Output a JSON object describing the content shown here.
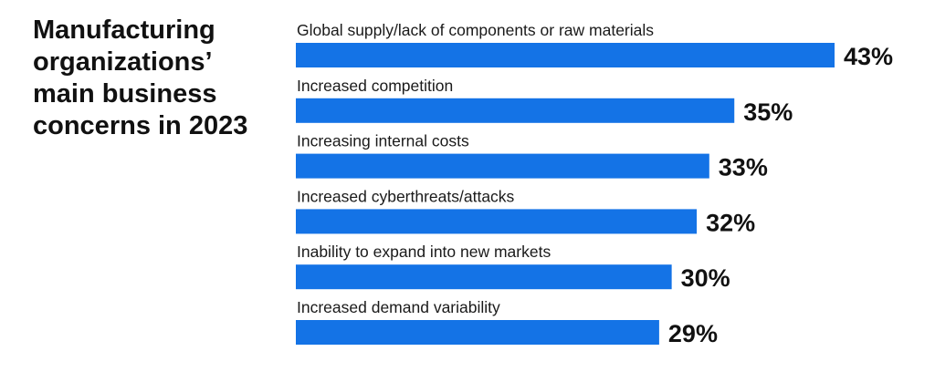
{
  "title": "Manufacturing organizations’ main business concerns in 2023",
  "colors": {
    "bar": "#1473e6",
    "text": "#111111"
  },
  "chart_data": {
    "type": "bar",
    "orientation": "horizontal",
    "title": "Manufacturing organizations’ main business concerns in 2023",
    "xlabel": "",
    "ylabel": "",
    "unit": "%",
    "grid": false,
    "xlim": [
      0,
      43
    ],
    "categories": [
      "Global supply/lack of components or raw materials",
      "Increased competition",
      "Increasing internal costs",
      "Increased cyberthreats/attacks",
      "Inability to expand into new markets",
      "Increased demand variability"
    ],
    "values": [
      43,
      35,
      33,
      32,
      30,
      29
    ],
    "value_labels": [
      "43%",
      "35%",
      "33%",
      "32%",
      "30%",
      "29%"
    ]
  }
}
